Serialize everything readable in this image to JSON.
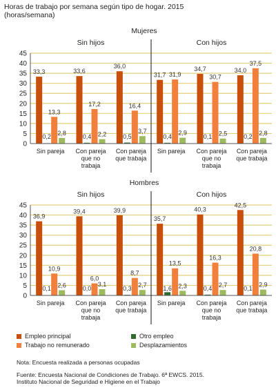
{
  "title_line1": "Horas de trabajo por semana según tipo de hogar. 2015",
  "title_line2": "(horas/semana)",
  "colors": {
    "Empleo principal": "#c84f0c",
    "Otro empleo": "#2f6b2e",
    "Trabajo no remunerado": "#f0803c",
    "Desplazamientos": "#9dba5e",
    "grid": "#e3cf7a",
    "axis": "#555555"
  },
  "legend": {
    "empleo": "Empleo principal",
    "otro": "Otro empleo",
    "trabajo": "Trabajo no remunerado",
    "desplaz": "Desplazamientos"
  },
  "note": "Nota: Encuesta realizada a personas ocupadas",
  "source_line1": "Fuente: Encuesta Nacional de Condiciones de Trabajo. 6ª EWCS. 2015.",
  "source_line2": "Instituto Nacional de Seguridad e Higiene en el Trabajo",
  "chart_data": [
    {
      "type": "bar",
      "title": "Mujeres",
      "groups": [
        "Sin hijos",
        "Con hijos"
      ],
      "categories": [
        "Sin pareja",
        "Con pareja que no trabaja",
        "Con pareja que trabaja",
        "Sin pareja",
        "Con pareja que no trabaja",
        "Con pareja que trabaja"
      ],
      "category_lines": [
        [
          "Sin pareja"
        ],
        [
          "Con pareja",
          "que no",
          "trabaja"
        ],
        [
          "Con pareja",
          "que trabaja"
        ],
        [
          "Sin pareja"
        ],
        [
          "Con pareja",
          "que no",
          "trabaja"
        ],
        [
          "Con pareja",
          "que trabaja"
        ]
      ],
      "series": [
        {
          "name": "Empleo principal",
          "values": [
            33.3,
            33.6,
            36.0,
            31.7,
            34.7,
            34.0
          ],
          "labels": [
            "33,3",
            "33,6",
            "36,0",
            "31,7",
            "34,7",
            "34,0"
          ]
        },
        {
          "name": "Otro empleo",
          "values": [
            0.2,
            0.4,
            0.5,
            0.4,
            0.1,
            0.2
          ],
          "labels": [
            "0,2",
            "0,4",
            "0,5",
            "0,4",
            "0,1",
            "0,2"
          ]
        },
        {
          "name": "Trabajo no remunerado",
          "values": [
            13.3,
            17.2,
            16.4,
            31.9,
            30.7,
            37.5
          ],
          "labels": [
            "13,3",
            "17,2",
            "16,4",
            "31,9",
            "30,7",
            "37,5"
          ]
        },
        {
          "name": "Desplazamientos",
          "values": [
            2.8,
            2.2,
            3.7,
            2.9,
            2.5,
            2.8
          ],
          "labels": [
            "2,8",
            "2,2",
            "3,7",
            "2,9",
            "2,5",
            "2,8"
          ]
        }
      ],
      "ylim": [
        0,
        45
      ],
      "yticks": [
        0,
        5,
        10,
        15,
        20,
        25,
        30,
        35,
        40,
        45
      ],
      "grid": true
    },
    {
      "type": "bar",
      "title": "Hombres",
      "groups": [
        "Sin hijos",
        "Con hijos"
      ],
      "categories": [
        "Sin pareja",
        "Con pareja que no trabaja",
        "Con pareja que trabaja",
        "Sin pareja",
        "Con pareja que no trabaja",
        "Con pareja que trabaja"
      ],
      "category_lines": [
        [
          "Sin pareja"
        ],
        [
          "Con pareja",
          "que no",
          "trabaja"
        ],
        [
          "Con pareja",
          "que trabaja"
        ],
        [
          "Sin pareja"
        ],
        [
          "Con pareja",
          "que no",
          "trabaja"
        ],
        [
          "Con pareja",
          "que trabaja"
        ]
      ],
      "series": [
        {
          "name": "Empleo principal",
          "values": [
            36.9,
            39.4,
            39.9,
            35.7,
            40.3,
            42.5
          ],
          "labels": [
            "36,9",
            "39,4",
            "39,9",
            "35,7",
            "40,3",
            "42,5"
          ]
        },
        {
          "name": "Otro empleo",
          "values": [
            0.1,
            0.0,
            0.3,
            1.6,
            0.4,
            0.1
          ],
          "labels": [
            "0,1",
            "0,0",
            "0,3",
            "1,6",
            "0,4",
            "0,1"
          ]
        },
        {
          "name": "Trabajo no remunerado",
          "values": [
            10.9,
            6.0,
            8.7,
            13.5,
            16.3,
            20.8
          ],
          "labels": [
            "10,9",
            "6,0",
            "8,7",
            "13,5",
            "16,3",
            "20,8"
          ]
        },
        {
          "name": "Desplazamientos",
          "values": [
            2.6,
            3.1,
            2.7,
            2.3,
            2.7,
            2.9
          ],
          "labels": [
            "2,6",
            "3,1",
            "2,7",
            "2,3",
            "2,7",
            "2,9"
          ]
        }
      ],
      "ylim": [
        0,
        45
      ],
      "yticks": [
        0,
        5,
        10,
        15,
        20,
        25,
        30,
        35,
        40,
        45
      ],
      "grid": true
    }
  ]
}
